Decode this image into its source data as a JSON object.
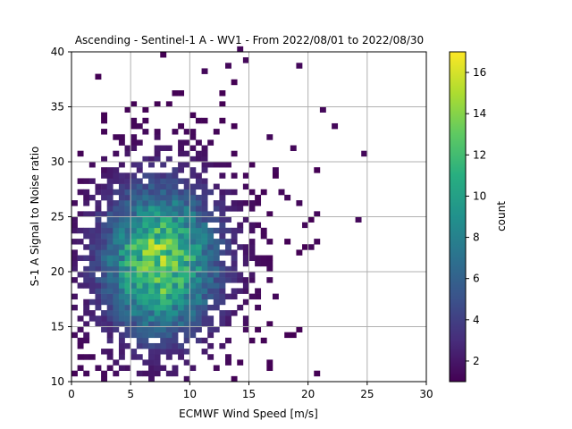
{
  "chart_data": {
    "type": "heatmap",
    "title": "Ascending - Sentinel-1 A - WV1 - From 2022/08/01 to 2022/08/30",
    "xlabel": "ECMWF Wind Speed [m/s]",
    "ylabel": "S-1 A Signal to Noise ratio",
    "xlim": [
      0,
      30
    ],
    "ylim": [
      10,
      40
    ],
    "xticks": [
      0,
      5,
      10,
      15,
      20,
      25,
      30
    ],
    "yticks": [
      10,
      15,
      20,
      25,
      30,
      35,
      40
    ],
    "grid": true,
    "colormap": "viridis",
    "colorbar": {
      "label": "count",
      "min": 1,
      "max": 17,
      "ticks": [
        2,
        4,
        6,
        8,
        10,
        12,
        14,
        16
      ]
    },
    "bin_size": {
      "x": 0.5,
      "y": 0.5
    },
    "density_peak": {
      "x": 7.5,
      "y": 21
    },
    "outliers": [
      [
        24,
        24.5
      ],
      [
        24.5,
        30.5
      ],
      [
        22,
        33
      ],
      [
        21,
        34.5
      ],
      [
        20.5,
        22.5
      ],
      [
        20.5,
        25
      ],
      [
        20,
        22
      ],
      [
        19.5,
        24
      ],
      [
        19,
        26
      ],
      [
        18,
        26.5
      ],
      [
        17.5,
        27
      ],
      [
        17,
        29
      ],
      [
        18.5,
        31
      ],
      [
        16.5,
        32
      ],
      [
        0.5,
        11
      ],
      [
        0.5,
        13
      ],
      [
        1,
        10.5
      ],
      [
        1.5,
        12
      ],
      [
        17,
        17.5
      ],
      [
        16.5,
        19
      ],
      [
        11,
        38
      ],
      [
        14.5,
        39
      ],
      [
        19,
        38.5
      ],
      [
        14,
        40
      ],
      [
        13,
        38.5
      ]
    ]
  }
}
